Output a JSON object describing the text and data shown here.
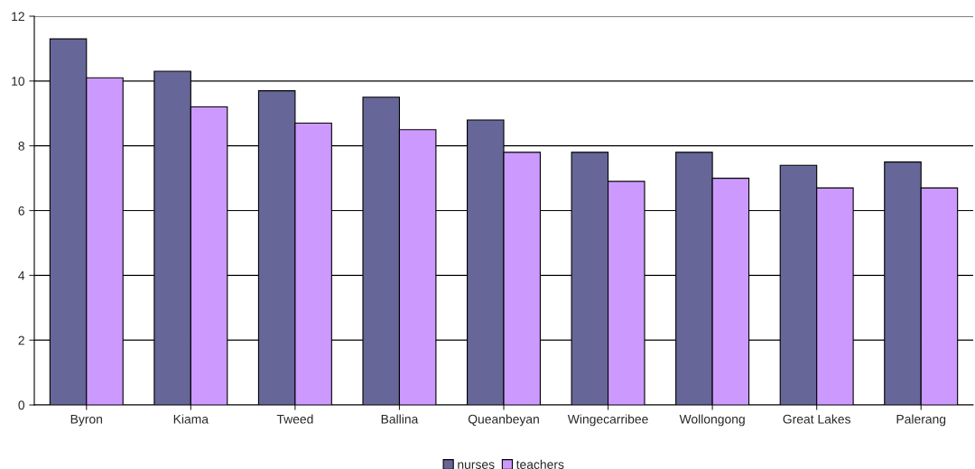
{
  "chart_data": {
    "type": "bar",
    "categories": [
      "Byron",
      "Kiama",
      "Tweed",
      "Ballina",
      "Queanbeyan",
      "Wingecarribee",
      "Wollongong",
      "Great Lakes",
      "Palerang"
    ],
    "series": [
      {
        "name": "nurses",
        "color": "#666699",
        "values": [
          11.3,
          10.3,
          9.7,
          9.5,
          8.8,
          7.8,
          7.8,
          7.4,
          7.5
        ]
      },
      {
        "name": "teachers",
        "color": "#cc99ff",
        "values": [
          10.1,
          9.2,
          8.7,
          8.5,
          7.8,
          6.9,
          7.0,
          6.7,
          6.7
        ]
      }
    ],
    "ylim": [
      0,
      12
    ],
    "yticks": [
      0,
      2,
      4,
      6,
      8,
      10,
      12
    ],
    "grid": "y",
    "legend": "bottom"
  }
}
